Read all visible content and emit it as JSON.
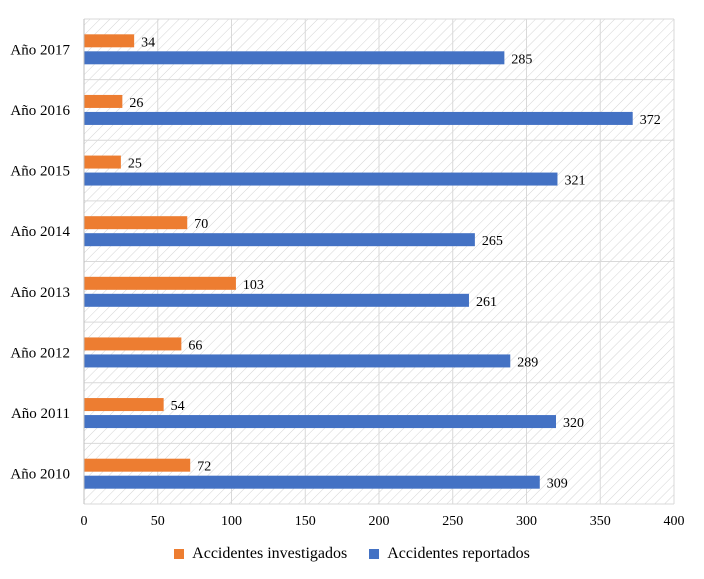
{
  "chart_data": {
    "type": "bar",
    "orientation": "horizontal",
    "categories": [
      "Año 2017",
      "Año 2016",
      "Año 2015",
      "Año 2014",
      "Año 2013",
      "Año 2012",
      "Año 2011",
      "Año 2010"
    ],
    "series": [
      {
        "name": "Accidentes investigados",
        "color": "#ED7D31",
        "values": [
          34,
          26,
          25,
          70,
          103,
          66,
          54,
          72
        ]
      },
      {
        "name": "Accidentes reportados",
        "color": "#4472C4",
        "values": [
          285,
          372,
          321,
          265,
          261,
          289,
          320,
          309
        ]
      }
    ],
    "xlim": [
      0,
      400
    ],
    "xticks": [
      0,
      50,
      100,
      150,
      200,
      250,
      300,
      350,
      400
    ],
    "grid": true,
    "legend_position": "bottom",
    "plot_background": "diagonal-hatch"
  }
}
